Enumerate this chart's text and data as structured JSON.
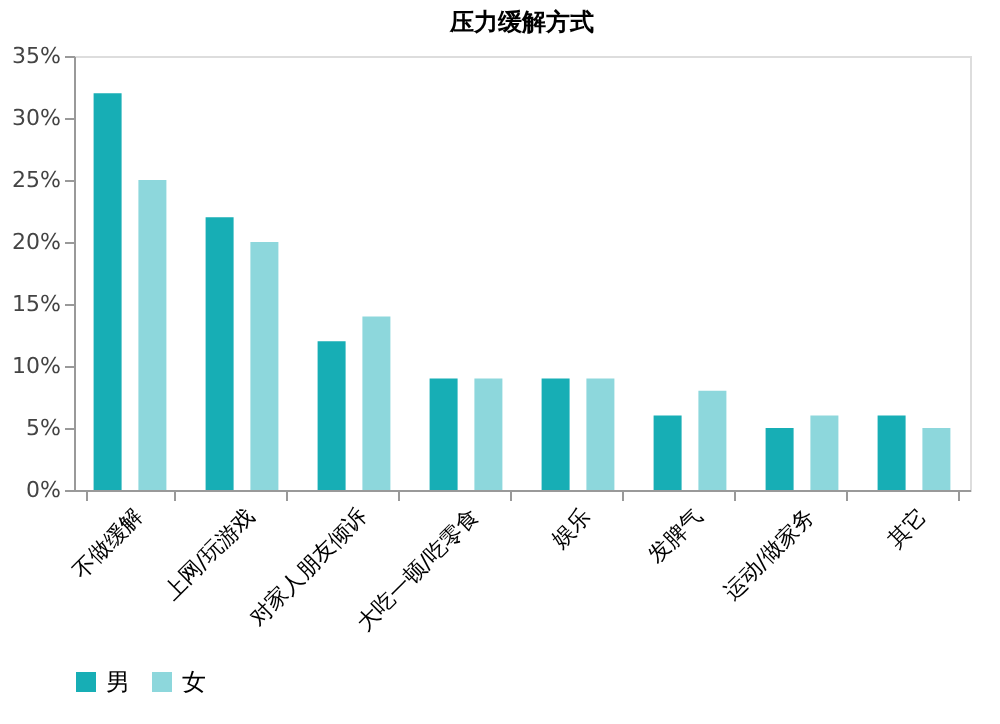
{
  "chart_data": {
    "type": "bar",
    "title": "压力缓解方式",
    "categories": [
      "不做缓解",
      "上网/玩游戏",
      "对家人朋友倾诉",
      "大吃一顿/吃零食",
      "娱乐",
      "发脾气",
      "运动/做家务",
      "其它"
    ],
    "series": [
      {
        "name": "男",
        "color": "#17aeb5",
        "values": [
          32,
          22,
          12,
          9,
          9,
          6,
          5,
          6
        ]
      },
      {
        "name": "女",
        "color": "#8dd7dc",
        "values": [
          25,
          20,
          14,
          9,
          9,
          8,
          6,
          5
        ]
      }
    ],
    "ylim": [
      0,
      35
    ],
    "yticks": [
      {
        "value": 0,
        "label": "0%"
      },
      {
        "value": 5,
        "label": "5%"
      },
      {
        "value": 10,
        "label": "10%"
      },
      {
        "value": 15,
        "label": "15%"
      },
      {
        "value": 20,
        "label": "20%"
      },
      {
        "value": 25,
        "label": "25%"
      },
      {
        "value": 30,
        "label": "30%"
      },
      {
        "value": 35,
        "label": "35%"
      }
    ],
    "grid": false,
    "legend": "bottom"
  }
}
